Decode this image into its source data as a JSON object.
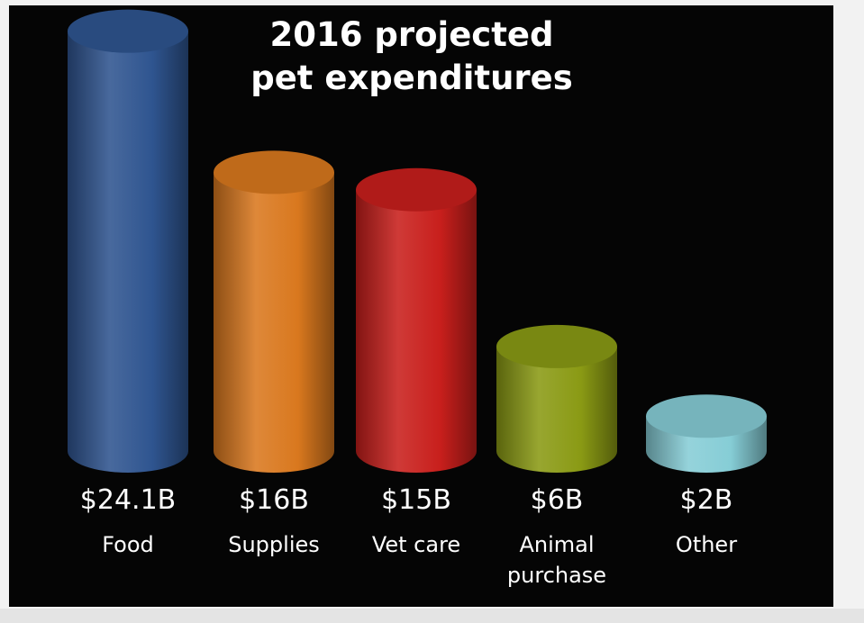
{
  "chart_data": {
    "type": "bar",
    "title": "2016 projected pet expenditures",
    "title_lines": [
      "2016 projected",
      "pet expenditures"
    ],
    "categories": [
      [
        "Food"
      ],
      [
        "Supplies"
      ],
      [
        "Vet care"
      ],
      [
        "Animal",
        "purchase"
      ],
      [
        "Other"
      ]
    ],
    "values": [
      24.1,
      16,
      15,
      6,
      2
    ],
    "value_labels": [
      "$24.1B",
      "$16B",
      "$15B",
      "$6B",
      "$2B"
    ],
    "colors": [
      "#2f5590",
      "#d9781e",
      "#c81f1c",
      "#8a9a14",
      "#86cdd6"
    ],
    "background": "#050505",
    "grid": false,
    "legend": "none"
  }
}
